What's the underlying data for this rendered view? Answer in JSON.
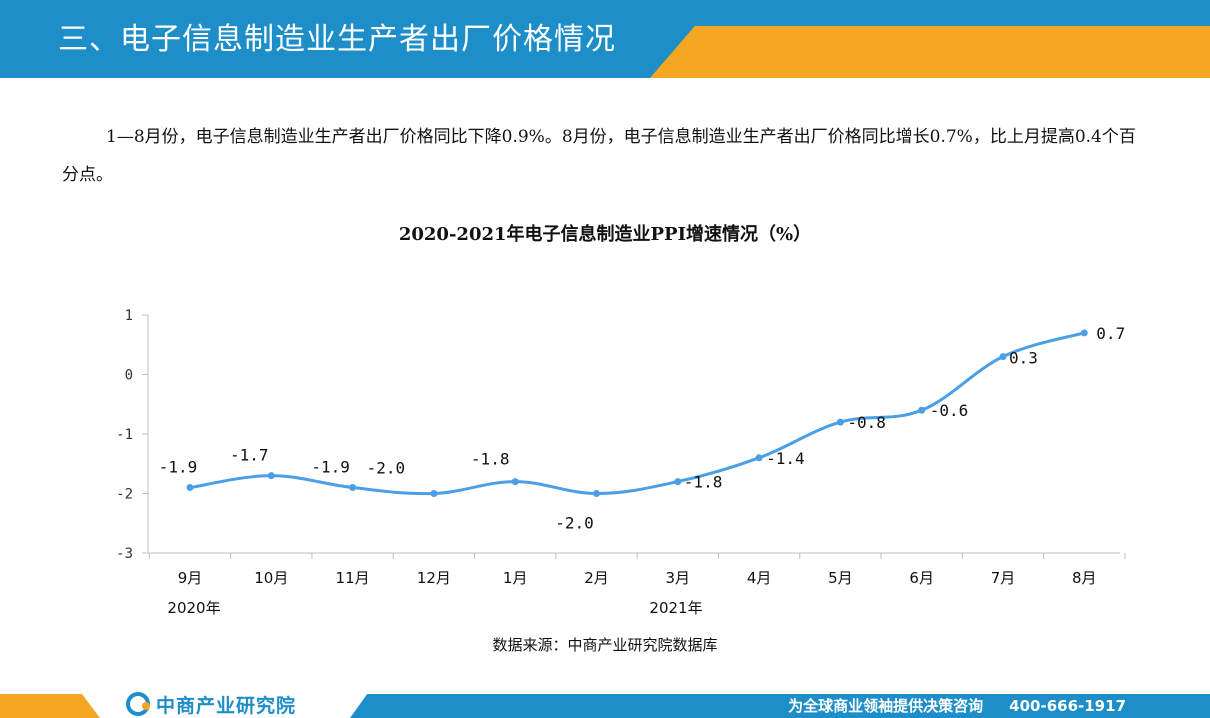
{
  "header": {
    "title": "三、电子信息制造业生产者出厂价格情况"
  },
  "intro": "1—8月份，电子信息制造业生产者出厂价格同比下降0.9%。8月份，电子信息制造业生产者出厂价格同比增长0.7%，比上月提高0.4个百分点。",
  "chart_data": {
    "type": "line",
    "title": "2020-2021年电子信息制造业PPI增速情况（%）",
    "categories": [
      "9月",
      "10月",
      "11月",
      "12月",
      "1月",
      "2月",
      "3月",
      "4月",
      "5月",
      "6月",
      "7月",
      "8月"
    ],
    "year_labels": [
      "2020年",
      "2021年"
    ],
    "series": [
      {
        "values": [
          -1.9,
          -1.7,
          -1.9,
          -2.0,
          -1.8,
          -2.0,
          -1.8,
          -1.4,
          -0.8,
          -0.6,
          0.3,
          0.7
        ]
      }
    ],
    "data_labels": [
      "-1.9",
      "-1.7",
      "-1.9",
      "-2.0",
      "-1.8",
      "-2.0",
      "-1.8",
      "-1.4",
      "-0.8",
      "-0.6",
      "0.3",
      "0.7"
    ],
    "y_ticks": [
      "1",
      "0",
      "-1",
      "-2",
      "-3"
    ],
    "ylim": [
      -3,
      1
    ],
    "line_color": "#4a9fe6",
    "grid": false
  },
  "source": "数据来源：中商产业研究院数据库",
  "footer": {
    "logo_text": "中商产业研究院",
    "slogan": "为全球商业领袖提供决策咨询",
    "phone": "400-666-1917"
  },
  "colors": {
    "primary_blue": "#1e8ec8",
    "accent_orange": "#f5a623"
  }
}
